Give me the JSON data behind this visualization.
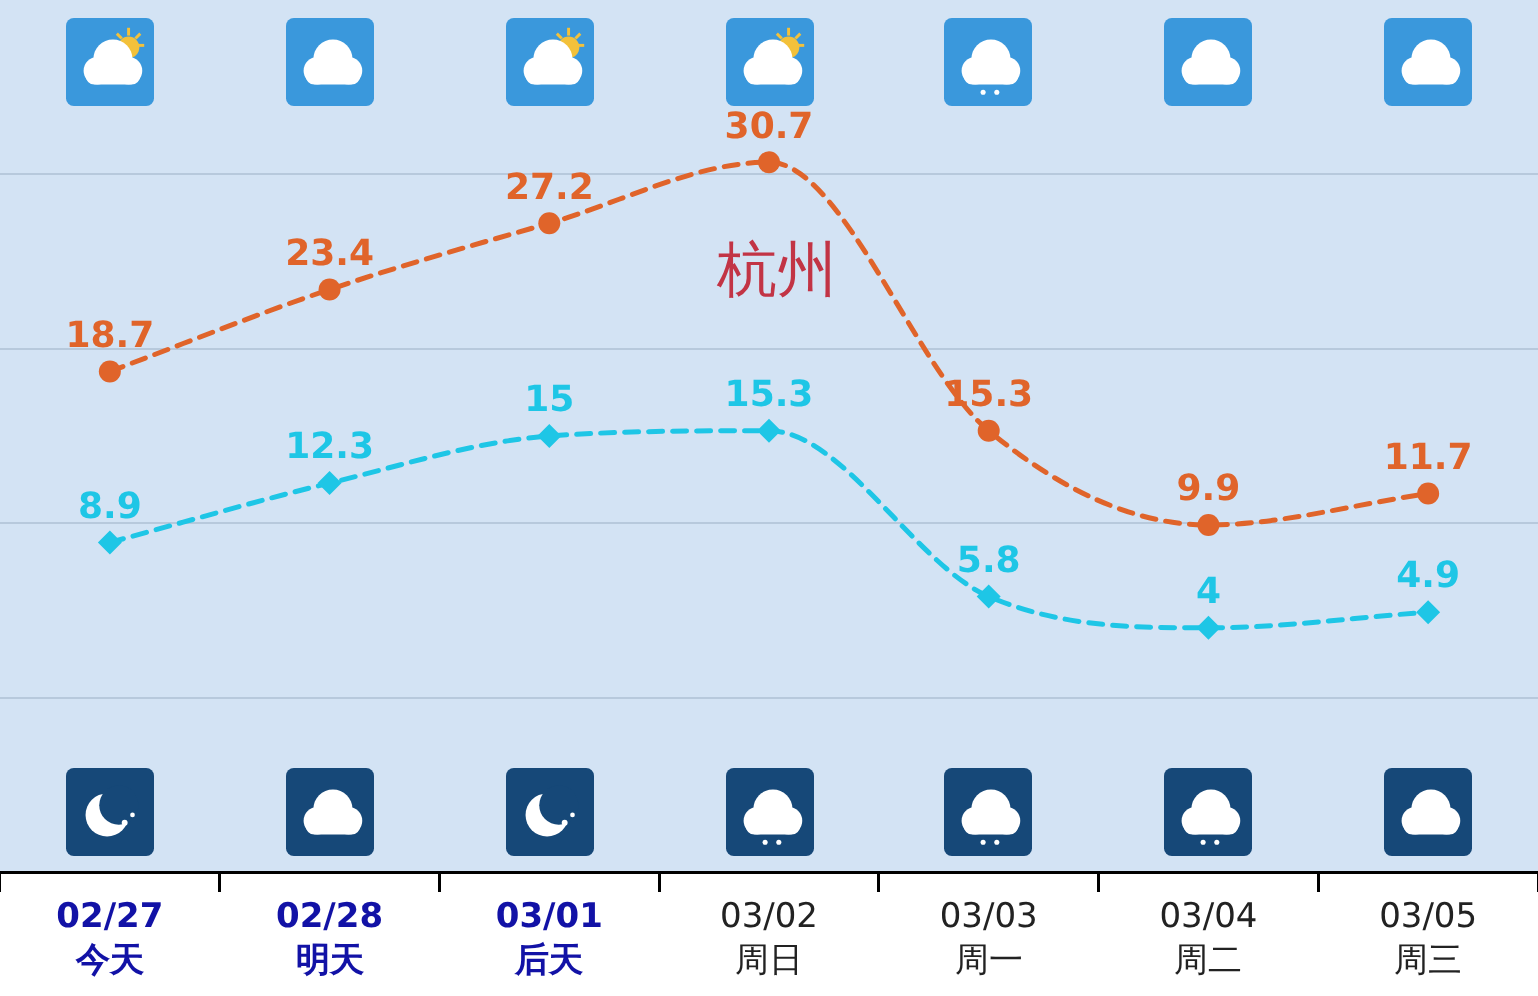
{
  "chart_data": {
    "type": "line",
    "title": "杭州",
    "categories": [
      "02/27\n今天",
      "02/28\n明天",
      "03/01\n后天",
      "03/02\n周日",
      "03/03\n周一",
      "03/04\n周二",
      "03/05\n周三"
    ],
    "series": [
      {
        "color": "#e0642a",
        "marker": "circle",
        "values": [
          18.7,
          23.4,
          27.2,
          30.7,
          15.3,
          9.9,
          11.7
        ]
      },
      {
        "color": "#1ec6e6",
        "marker": "diamond",
        "values": [
          8.9,
          12.3,
          15,
          15.3,
          5.8,
          4,
          4.9
        ]
      }
    ],
    "ylim": [
      -10,
      40
    ],
    "yticks": [
      {
        "value": 0,
        "label": null
      },
      {
        "value": 10,
        "label": null
      },
      {
        "value": 20,
        "label": null
      },
      {
        "value": 30,
        "label": null
      }
    ],
    "grid": "y",
    "tick_labels": "x",
    "data_labels": true,
    "line_style": "dashed",
    "legend": false
  }
}
